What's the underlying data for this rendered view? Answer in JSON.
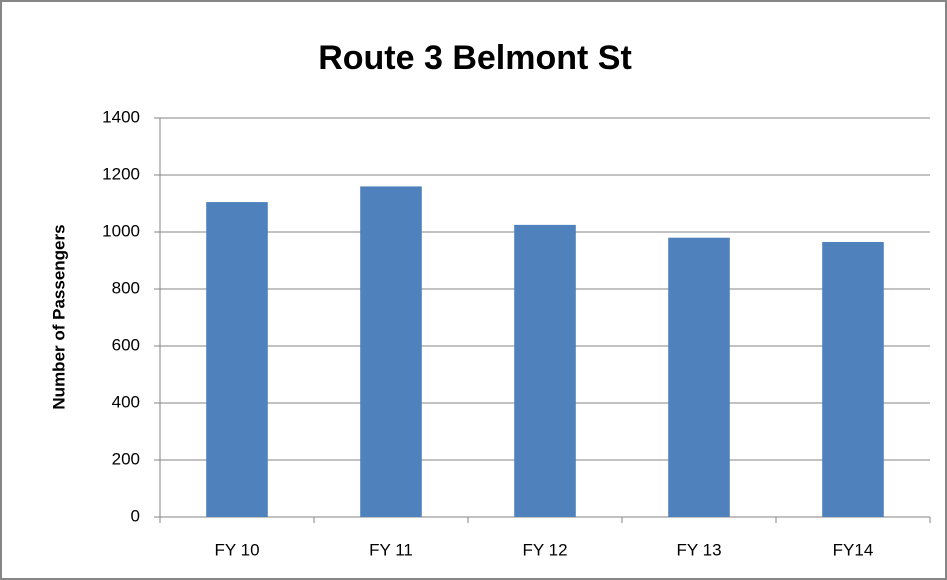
{
  "chart_data": {
    "type": "bar",
    "title": "Route 3 Belmont St",
    "ylabel": "Number of Passengers",
    "categories": [
      "FY 10",
      "FY 11",
      "FY 12",
      "FY 13",
      "FY14"
    ],
    "values": [
      1105,
      1160,
      1025,
      980,
      965
    ],
    "color": "#4f81bd",
    "ylim": [
      0,
      1400
    ],
    "yticks": [
      0,
      200,
      400,
      600,
      800,
      1000,
      1200,
      1400
    ],
    "grid": true
  }
}
